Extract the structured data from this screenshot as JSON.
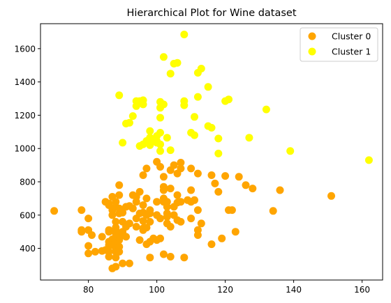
{
  "chart_data": {
    "type": "scatter",
    "title": "Hierarchical Plot for Wine dataset",
    "xlabel": "",
    "ylabel": "",
    "xlim": [
      66,
      166
    ],
    "ylim": [
      210,
      1750
    ],
    "xticks": [
      80,
      100,
      120,
      140,
      160
    ],
    "yticks": [
      400,
      600,
      800,
      1000,
      1200,
      1400,
      1600
    ],
    "grid": false,
    "legend_position": "top-right",
    "series": [
      {
        "name": "Cluster 0",
        "color": "#ffa500",
        "points": [
          [
            70,
            625
          ],
          [
            78,
            630
          ],
          [
            78,
            510
          ],
          [
            78,
            500
          ],
          [
            80,
            580
          ],
          [
            80,
            510
          ],
          [
            80,
            415
          ],
          [
            80,
            370
          ],
          [
            81,
            480
          ],
          [
            82,
            380
          ],
          [
            84,
            385
          ],
          [
            84,
            470
          ],
          [
            85,
            680
          ],
          [
            85,
            390
          ],
          [
            86,
            660
          ],
          [
            86,
            670
          ],
          [
            86,
            510
          ],
          [
            86,
            500
          ],
          [
            86,
            380
          ],
          [
            86,
            350
          ],
          [
            86,
            420
          ],
          [
            86,
            440
          ],
          [
            87,
            710
          ],
          [
            87,
            630
          ],
          [
            87,
            455
          ],
          [
            87,
            420
          ],
          [
            87,
            280
          ],
          [
            87,
            600
          ],
          [
            88,
            560
          ],
          [
            88,
            525
          ],
          [
            88,
            505
          ],
          [
            88,
            490
          ],
          [
            88,
            470
          ],
          [
            88,
            445
          ],
          [
            88,
            400
          ],
          [
            88,
            380
          ],
          [
            88,
            345
          ],
          [
            88,
            420
          ],
          [
            88,
            290
          ],
          [
            88,
            510
          ],
          [
            88,
            680
          ],
          [
            88,
            650
          ],
          [
            89,
            640
          ],
          [
            89,
            450
          ],
          [
            89,
            460
          ],
          [
            89,
            480
          ],
          [
            89,
            410
          ],
          [
            89,
            380
          ],
          [
            89,
            780
          ],
          [
            89,
            720
          ],
          [
            89,
            610
          ],
          [
            90,
            615
          ],
          [
            90,
            310
          ],
          [
            90,
            500
          ],
          [
            90,
            560
          ],
          [
            91,
            650
          ],
          [
            91,
            530
          ],
          [
            91,
            470
          ],
          [
            92,
            310
          ],
          [
            92,
            550
          ],
          [
            92,
            655
          ],
          [
            93,
            720
          ],
          [
            93,
            640
          ],
          [
            94,
            580
          ],
          [
            94,
            530
          ],
          [
            94,
            710
          ],
          [
            94,
            680
          ],
          [
            95,
            740
          ],
          [
            95,
            610
          ],
          [
            95,
            450
          ],
          [
            96,
            840
          ],
          [
            96,
            660
          ],
          [
            96,
            615
          ],
          [
            96,
            565
          ],
          [
            96,
            520
          ],
          [
            96,
            510
          ],
          [
            97,
            880
          ],
          [
            97,
            700
          ],
          [
            97,
            600
          ],
          [
            97,
            525
          ],
          [
            97,
            425
          ],
          [
            98,
            610
          ],
          [
            98,
            560
          ],
          [
            98,
            630
          ],
          [
            98,
            440
          ],
          [
            98,
            345
          ],
          [
            99,
            460
          ],
          [
            100,
            920
          ],
          [
            100,
            680
          ],
          [
            100,
            450
          ],
          [
            100,
            600
          ],
          [
            101,
            460
          ],
          [
            101,
            890
          ],
          [
            101,
            580
          ],
          [
            102,
            830
          ],
          [
            102,
            770
          ],
          [
            102,
            750
          ],
          [
            102,
            700
          ],
          [
            102,
            680
          ],
          [
            102,
            365
          ],
          [
            103,
            680
          ],
          [
            103,
            650
          ],
          [
            103,
            610
          ],
          [
            103,
            590
          ],
          [
            103,
            550
          ],
          [
            104,
            870
          ],
          [
            104,
            760
          ],
          [
            104,
            530
          ],
          [
            104,
            350
          ],
          [
            105,
            900
          ],
          [
            105,
            650
          ],
          [
            105,
            600
          ],
          [
            106,
            850
          ],
          [
            106,
            720
          ],
          [
            106,
            675
          ],
          [
            106,
            570
          ],
          [
            107,
            915
          ],
          [
            107,
            880
          ],
          [
            107,
            680
          ],
          [
            107,
            560
          ],
          [
            108,
            345
          ],
          [
            109,
            690
          ],
          [
            110,
            880
          ],
          [
            110,
            750
          ],
          [
            110,
            680
          ],
          [
            110,
            580
          ],
          [
            111,
            690
          ],
          [
            112,
            850
          ],
          [
            112,
            630
          ],
          [
            112,
            510
          ],
          [
            112,
            480
          ],
          [
            113,
            550
          ],
          [
            116,
            840
          ],
          [
            116,
            425
          ],
          [
            117,
            790
          ],
          [
            118,
            740
          ],
          [
            119,
            460
          ],
          [
            120,
            835
          ],
          [
            121,
            630
          ],
          [
            122,
            630
          ],
          [
            123,
            500
          ],
          [
            124,
            830
          ],
          [
            126,
            780
          ],
          [
            128,
            760
          ],
          [
            134,
            625
          ],
          [
            136,
            750
          ],
          [
            151,
            715
          ]
        ]
      },
      {
        "name": "Cluster 1",
        "color": "#ffff00",
        "points": [
          [
            89,
            1320
          ],
          [
            90,
            1035
          ],
          [
            91,
            1150
          ],
          [
            92,
            1155
          ],
          [
            93,
            1195
          ],
          [
            94,
            1255
          ],
          [
            94,
            1285
          ],
          [
            95,
            1285
          ],
          [
            96,
            1265
          ],
          [
            96,
            1290
          ],
          [
            95,
            1015
          ],
          [
            96,
            1025
          ],
          [
            97,
            1045
          ],
          [
            97,
            1045
          ],
          [
            98,
            1030
          ],
          [
            98,
            1105
          ],
          [
            98,
            1065
          ],
          [
            98,
            1020
          ],
          [
            99,
            1045
          ],
          [
            100,
            1075
          ],
          [
            100,
            1045
          ],
          [
            100,
            1035
          ],
          [
            101,
            1025
          ],
          [
            101,
            1095
          ],
          [
            101,
            985
          ],
          [
            101,
            1185
          ],
          [
            101,
            1245
          ],
          [
            101,
            1280
          ],
          [
            102,
            1265
          ],
          [
            102,
            1550
          ],
          [
            103,
            1065
          ],
          [
            104,
            990
          ],
          [
            104,
            1450
          ],
          [
            105,
            1510
          ],
          [
            106,
            1515
          ],
          [
            108,
            1685
          ],
          [
            108,
            1285
          ],
          [
            108,
            1260
          ],
          [
            110,
            1095
          ],
          [
            111,
            1080
          ],
          [
            111,
            1190
          ],
          [
            112,
            1310
          ],
          [
            112,
            1455
          ],
          [
            113,
            1480
          ],
          [
            115,
            1370
          ],
          [
            115,
            1135
          ],
          [
            116,
            1125
          ],
          [
            118,
            1060
          ],
          [
            118,
            970
          ],
          [
            120,
            1285
          ],
          [
            121,
            1295
          ],
          [
            127,
            1065
          ],
          [
            132,
            1235
          ],
          [
            139,
            985
          ],
          [
            162,
            930
          ]
        ]
      }
    ]
  }
}
